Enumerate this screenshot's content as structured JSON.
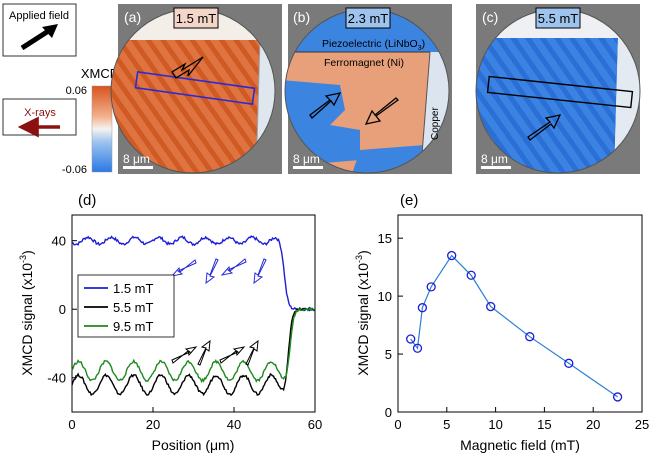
{
  "legend_box": {
    "label": "Applied field"
  },
  "colorbar": {
    "title": "XMCD",
    "max_label": "0.06",
    "min_label": "-0.06"
  },
  "xrays": {
    "label": "X-rays"
  },
  "panels": {
    "a": {
      "letter": "(a)",
      "field": "1.5 mT",
      "scale": "8 μm",
      "field_color": "#ffffff"
    },
    "b": {
      "letter": "(b)",
      "field": "2.3 mT",
      "scale": "8 μm",
      "field_color": "#ffffff",
      "labels": {
        "piezo": "Piezoelectric (LiNbO",
        "piezo_sub": "3",
        "piezo_end": ")",
        "ferro": "Ferromagnet (Ni)",
        "copper": "Copper"
      }
    },
    "c": {
      "letter": "(c)",
      "field": "5.5 mT",
      "scale": "8 μm",
      "field_color": "#ffffff"
    }
  },
  "chart_data": [
    {
      "id": "d",
      "type": "line",
      "panel_label": "(d)",
      "xlabel": "Position (μm)",
      "ylabel": "XMCD signal (x10",
      "ylabel_exp": "-3",
      "ylabel_end": ")",
      "xlim": [
        0,
        60
      ],
      "ylim": [
        -60,
        55
      ],
      "xticks": [
        0,
        20,
        40,
        60
      ],
      "yticks": [
        -40,
        0,
        40
      ],
      "legend_position": "center-left",
      "series": [
        {
          "name": "1.5 mT",
          "color": "#1d1ddb",
          "base": 40,
          "amplitude": 2,
          "period": 5.8,
          "phase": 1.0,
          "edge": 52.5,
          "end": 0
        },
        {
          "name": "5.5 mT",
          "color": "#000000",
          "base": -44,
          "amplitude": 5.5,
          "period": 6.8,
          "phase": 5.0,
          "edge": 53.5,
          "end": 0
        },
        {
          "name": "9.5 mT",
          "color": "#1e8a1e",
          "base": -36,
          "amplitude": 5.5,
          "period": 6.8,
          "phase": 5.0,
          "edge": 54,
          "end": 0
        }
      ]
    },
    {
      "id": "e",
      "type": "scatter",
      "panel_label": "(e)",
      "xlabel": "Magnetic field (mT)",
      "ylabel": "XMCD signal (x10",
      "ylabel_exp": "-3",
      "ylabel_end": ")",
      "xlim": [
        0,
        25
      ],
      "ylim": [
        0,
        17
      ],
      "xticks": [
        0,
        5,
        10,
        15,
        20,
        25
      ],
      "yticks": [
        0,
        5,
        10,
        15
      ],
      "color": "#2a7fd4",
      "x": [
        1.3,
        2.0,
        2.5,
        3.4,
        5.5,
        7.5,
        9.5,
        13.5,
        17.5,
        22.5
      ],
      "y": [
        6.3,
        5.5,
        9.0,
        10.8,
        13.5,
        11.8,
        9.1,
        6.5,
        4.2,
        1.3
      ]
    }
  ]
}
